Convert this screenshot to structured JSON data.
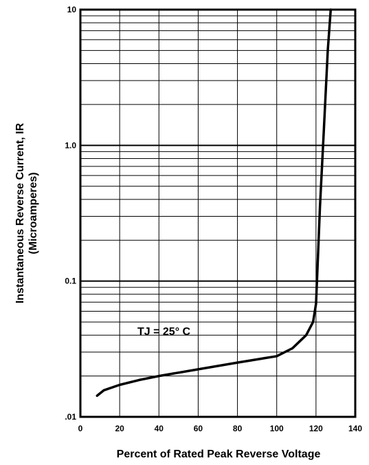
{
  "chart_data": {
    "type": "line",
    "title": "",
    "xlabel": "Percent of Rated Peak Reverse Voltage",
    "ylabel_line1": "Instantaneous Reverse Current, IR",
    "ylabel_line2": "(Microamperes)",
    "xlim": [
      0,
      140
    ],
    "ylim": [
      0.01,
      10
    ],
    "yscale": "log",
    "grid": true,
    "x_ticks": [
      "0",
      "20",
      "40",
      "60",
      "80",
      "100",
      "120",
      "140"
    ],
    "y_ticks": [
      ".01",
      "0.1",
      "1.0",
      "10"
    ],
    "annotation": "TJ = 25° C",
    "series": [
      {
        "x": [
          8.5,
          12,
          20,
          30,
          40,
          60,
          80,
          100,
          108,
          115,
          118.5,
          120,
          121,
          122,
          124,
          126,
          127.5
        ],
        "y": [
          0.0143,
          0.0157,
          0.0172,
          0.0187,
          0.02,
          0.0224,
          0.0251,
          0.028,
          0.032,
          0.04,
          0.05,
          0.068,
          0.15,
          0.35,
          1.3,
          5.0,
          10.0
        ]
      }
    ]
  }
}
